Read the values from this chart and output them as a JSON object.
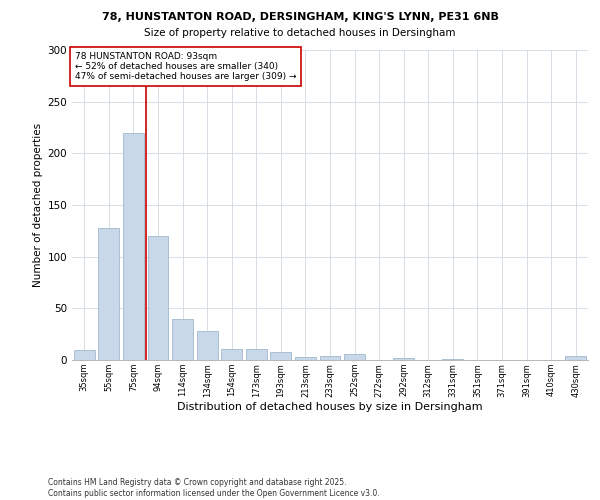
{
  "title1": "78, HUNSTANTON ROAD, DERSINGHAM, KING'S LYNN, PE31 6NB",
  "title2": "Size of property relative to detached houses in Dersingham",
  "xlabel": "Distribution of detached houses by size in Dersingham",
  "ylabel": "Number of detached properties",
  "bar_labels": [
    "35sqm",
    "55sqm",
    "75sqm",
    "94sqm",
    "114sqm",
    "134sqm",
    "154sqm",
    "173sqm",
    "193sqm",
    "213sqm",
    "233sqm",
    "252sqm",
    "272sqm",
    "292sqm",
    "312sqm",
    "331sqm",
    "351sqm",
    "371sqm",
    "391sqm",
    "410sqm",
    "430sqm"
  ],
  "bar_values": [
    10,
    128,
    220,
    120,
    40,
    28,
    11,
    11,
    8,
    3,
    4,
    6,
    0,
    2,
    0,
    1,
    0,
    0,
    0,
    0,
    4
  ],
  "bar_color": "#c8d8e8",
  "bar_edge_color": "#a0b8d0",
  "vline_x": 2.5,
  "vline_color": "#cc0000",
  "annotation_text": "78 HUNSTANTON ROAD: 93sqm\n← 52% of detached houses are smaller (340)\n47% of semi-detached houses are larger (309) →",
  "annotation_box_color": "#ffffff",
  "annotation_box_edge": "#cc0000",
  "ylim": [
    0,
    300
  ],
  "yticks": [
    0,
    50,
    100,
    150,
    200,
    250,
    300
  ],
  "footer": "Contains HM Land Registry data © Crown copyright and database right 2025.\nContains public sector information licensed under the Open Government Licence v3.0.",
  "bg_color": "#ffffff",
  "grid_color": "#d0d8e0"
}
